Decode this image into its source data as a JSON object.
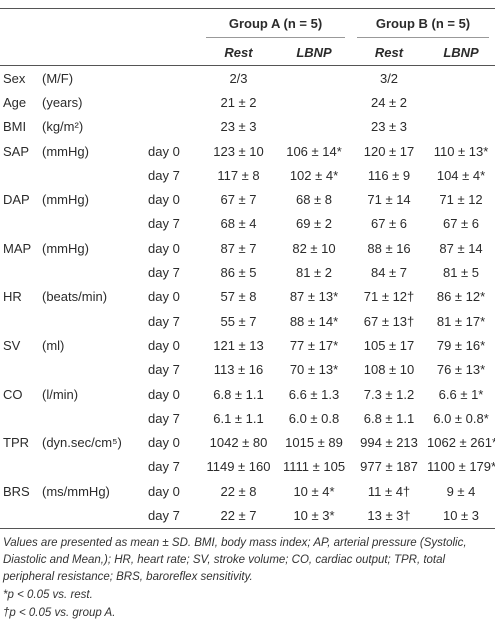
{
  "table": {
    "groups": [
      "Group A (n = 5)",
      "Group B (n = 5)"
    ],
    "subheaders": [
      "Rest",
      "LBNP",
      "Rest",
      "LBNP"
    ],
    "rows": [
      {
        "label": "Sex",
        "unit": "(M/F)",
        "cells": [
          "2/3",
          null,
          "3/2",
          null
        ]
      },
      {
        "label": "Age",
        "unit": "(years)",
        "cells": [
          "21 ± 2",
          null,
          "24 ± 2",
          null
        ]
      },
      {
        "label": "BMI",
        "unit": "(kg/m²)",
        "cells": [
          "23 ± 3",
          null,
          "23 ± 3",
          null
        ]
      },
      {
        "label": "SAP",
        "unit": "(mmHg)",
        "day": "day 0",
        "cells": [
          "123 ± 10",
          "106 ± 14*",
          "120 ± 17",
          "110 ± 13*"
        ]
      },
      {
        "day": "day 7",
        "cells": [
          "117 ± 8",
          "102 ± 4*",
          "116 ± 9",
          "104 ± 4*"
        ]
      },
      {
        "label": "DAP",
        "unit": "(mmHg)",
        "day": "day 0",
        "cells": [
          "67 ± 7",
          "68 ± 8",
          "71 ± 14",
          "71 ± 12"
        ]
      },
      {
        "day": "day 7",
        "cells": [
          "68 ± 4",
          "69 ± 2",
          "67 ± 6",
          "67 ± 6"
        ]
      },
      {
        "label": "MAP",
        "unit": "(mmHg)",
        "day": "day 0",
        "cells": [
          "87 ± 7",
          "82 ± 10",
          "88 ± 16",
          "87 ± 14"
        ]
      },
      {
        "day": "day 7",
        "cells": [
          "86 ± 5",
          "81 ± 2",
          "84 ± 7",
          "81 ± 5"
        ]
      },
      {
        "label": "HR",
        "unit": "(beats/min)",
        "day": "day 0",
        "cells": [
          "57 ± 8",
          "87 ± 13*",
          "71 ± 12†",
          "86 ± 12*"
        ]
      },
      {
        "day": "day 7",
        "cells": [
          "55 ± 7",
          "88 ± 14*",
          "67 ± 13†",
          "81 ± 17*"
        ]
      },
      {
        "label": "SV",
        "unit": "(ml)",
        "day": "day 0",
        "cells": [
          "121 ± 13",
          "77 ± 17*",
          "105 ± 17",
          "79 ± 16*"
        ]
      },
      {
        "day": "day 7",
        "cells": [
          "113 ± 16",
          "70 ± 13*",
          "108 ± 10",
          "76 ± 13*"
        ]
      },
      {
        "label": "CO",
        "unit": "(l/min)",
        "day": "day 0",
        "cells": [
          "6.8 ± 1.1",
          "6.6 ± 1.3",
          "7.3 ± 1.2",
          "6.6 ± 1*"
        ]
      },
      {
        "day": "day 7",
        "cells": [
          "6.1 ± 1.1",
          "6.0 ± 0.8",
          "6.8 ± 1.1",
          "6.0 ± 0.8*"
        ]
      },
      {
        "label": "TPR",
        "unit": "(dyn.sec/cm⁵)",
        "day": "day 0",
        "cells": [
          "1042 ± 80",
          "1015 ± 89",
          "994 ± 213",
          "1062 ± 261*"
        ]
      },
      {
        "day": "day 7",
        "cells": [
          "1149 ± 160",
          "1111 ± 105",
          "977 ± 187",
          "1100 ± 179*"
        ]
      },
      {
        "label": "BRS",
        "unit": "(ms/mmHg)",
        "day": "day 0",
        "cells": [
          "22 ± 8",
          "10 ± 4*",
          "11 ± 4†",
          "9 ± 4"
        ]
      },
      {
        "day": "day 7",
        "cells": [
          "22 ± 7",
          "10 ± 3*",
          "13 ± 3†",
          "10 ± 3"
        ]
      }
    ]
  },
  "footnotes": [
    "Values are presented as mean ± SD. BMI, body mass index; AP, arterial pressure (Systolic, Diastolic and Mean,); HR, heart rate; SV, stroke volume; CO, cardiac output; TPR, total peripheral resistance; BRS, baroreflex sensitivity.",
    "*p < 0.05 vs. rest.",
    "†p < 0.05 vs. group A."
  ]
}
